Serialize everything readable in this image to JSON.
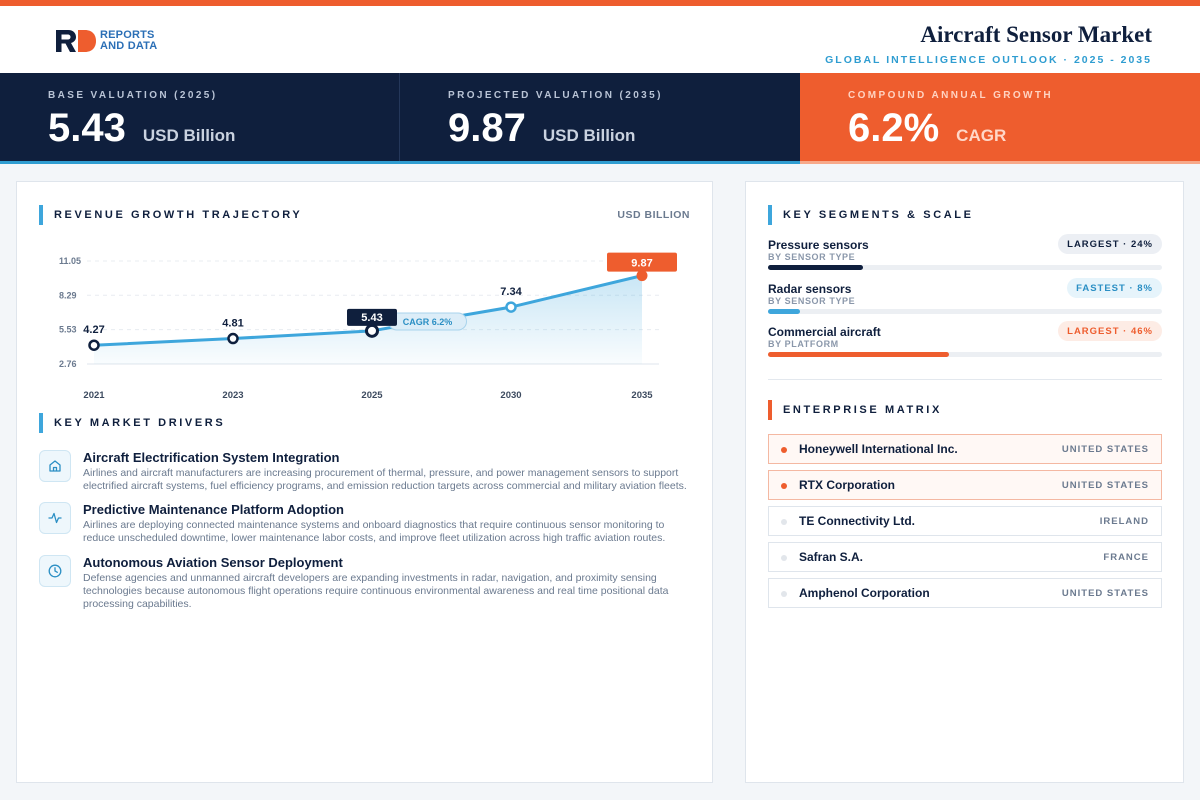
{
  "header": {
    "logo_line1": "REPORTS",
    "logo_line2": "AND DATA",
    "title": "Aircraft Sensor Market",
    "subtitle": "GLOBAL INTELLIGENCE OUTLOOK · 2025 - 2035"
  },
  "stats": [
    {
      "label": "BASE VALUATION (2025)",
      "value": "5.43",
      "unit": "USD Billion"
    },
    {
      "label": "PROJECTED VALUATION (2035)",
      "value": "9.87",
      "unit": "USD Billion"
    },
    {
      "label": "COMPOUND ANNUAL GROWTH",
      "value": "6.2%",
      "unit": "CAGR"
    }
  ],
  "revenue": {
    "section_title": "REVENUE GROWTH TRAJECTORY",
    "unit_label": "USD BILLION",
    "cagr_label": "CAGR 6.2%"
  },
  "chart_data": {
    "type": "line",
    "title": "REVENUE GROWTH TRAJECTORY",
    "ylabel": "USD BILLION",
    "x": [
      "2021",
      "2023",
      "2025",
      "2030",
      "2035"
    ],
    "values": [
      4.27,
      4.81,
      5.43,
      7.34,
      9.87
    ],
    "value_labels": [
      "4.27",
      "4.81",
      "5.43",
      "7.34",
      "9.87"
    ],
    "yticks": [
      2.76,
      5.53,
      8.29,
      11.05
    ],
    "ytick_labels": [
      "2.76",
      "5.53",
      "8.29",
      "11.05"
    ],
    "ylim": [
      2.76,
      11.05
    ],
    "grid": true,
    "highlight": {
      "2025": "base",
      "2035": "projected"
    },
    "colors": {
      "line": "#3ea6dc",
      "base": "#0f1f3d",
      "projected": "#ee5d2e"
    }
  },
  "drivers": {
    "section_title": "KEY MARKET DRIVERS",
    "items": [
      {
        "icon": "home-icon",
        "title": "Aircraft Electrification System Integration",
        "desc": "Airlines and aircraft manufacturers are increasing procurement of thermal, pressure, and power management sensors to support electrified aircraft systems, fuel efficiency programs, and emission reduction targets across commercial and military aviation fleets."
      },
      {
        "icon": "activity-icon",
        "title": "Predictive Maintenance Platform Adoption",
        "desc": "Airlines are deploying connected maintenance systems and onboard diagnostics that require continuous sensor monitoring to reduce unscheduled downtime, lower maintenance labor costs, and improve fleet utilization across high traffic aviation routes."
      },
      {
        "icon": "clock-icon",
        "title": "Autonomous Aviation Sensor Deployment",
        "desc": "Defense agencies and unmanned aircraft developers are expanding investments in radar, navigation, and proximity sensing technologies because autonomous flight operations require continuous environmental awareness and real time positional data processing capabilities."
      }
    ]
  },
  "segments": {
    "section_title": "KEY SEGMENTS & SCALE",
    "items": [
      {
        "name": "Pressure sensors",
        "sub": "BY SENSOR TYPE",
        "badge": "LARGEST · 24%",
        "share": 0.24,
        "color": "#0f1f3d",
        "badge_bg": "#eceff4",
        "badge_fg": "#0f1f3d"
      },
      {
        "name": "Radar sensors",
        "sub": "BY SENSOR TYPE",
        "badge": "FASTEST · 8%",
        "share": 0.08,
        "color": "#3ea6dc",
        "badge_bg": "#e6f4fb",
        "badge_fg": "#2b8fc4"
      },
      {
        "name": "Commercial aircraft",
        "sub": "BY PLATFORM",
        "badge": "LARGEST · 46%",
        "share": 0.46,
        "color": "#ee5d2e",
        "badge_bg": "#fdece5",
        "badge_fg": "#ee5d2e"
      }
    ]
  },
  "enterprise": {
    "section_title": "ENTERPRISE MATRIX",
    "companies": [
      {
        "name": "Honeywell International Inc.",
        "country": "UNITED STATES",
        "highlight": true
      },
      {
        "name": "RTX Corporation",
        "country": "UNITED STATES",
        "highlight": true
      },
      {
        "name": "TE Connectivity Ltd.",
        "country": "IRELAND",
        "highlight": false
      },
      {
        "name": "Safran S.A.",
        "country": "FRANCE",
        "highlight": false
      },
      {
        "name": "Amphenol Corporation",
        "country": "UNITED STATES",
        "highlight": false
      }
    ]
  }
}
